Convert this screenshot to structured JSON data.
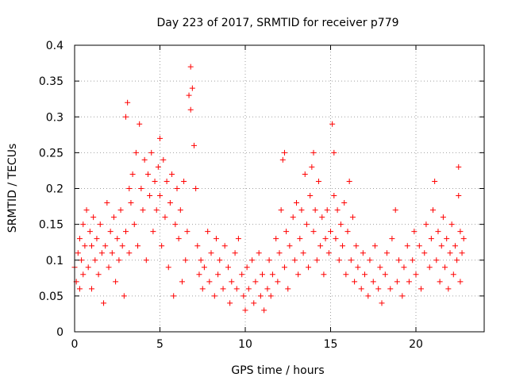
{
  "chart_data": {
    "type": "scatter",
    "title": "Day 223 of 2017, SRMTID for receiver p779",
    "xlabel": "GPS time / hours",
    "ylabel": "SRMTID / TECUs",
    "xlim": [
      0,
      24
    ],
    "ylim": [
      0,
      0.4
    ],
    "grid": true,
    "marker": "+",
    "color": "#ff0000",
    "xticks": [
      0,
      5,
      10,
      15,
      20
    ],
    "xtick_labels": [
      "0",
      "5",
      "10",
      "15",
      "20"
    ],
    "yticks": [
      0,
      0.05,
      0.1,
      0.15,
      0.2,
      0.25,
      0.3,
      0.35,
      0.4
    ],
    "ytick_labels": [
      "0",
      "0.05",
      "0.1",
      "0.15",
      "0.2",
      "0.25",
      "0.3",
      "0.35",
      "0.4"
    ],
    "series": [
      {
        "name": "p779",
        "points": [
          [
            0.0,
            0.09
          ],
          [
            0.1,
            0.07
          ],
          [
            0.2,
            0.11
          ],
          [
            0.3,
            0.13
          ],
          [
            0.3,
            0.06
          ],
          [
            0.4,
            0.1
          ],
          [
            0.5,
            0.15
          ],
          [
            0.5,
            0.08
          ],
          [
            0.6,
            0.12
          ],
          [
            0.7,
            0.17
          ],
          [
            0.8,
            0.09
          ],
          [
            0.9,
            0.14
          ],
          [
            1.0,
            0.12
          ],
          [
            1.0,
            0.06
          ],
          [
            1.1,
            0.16
          ],
          [
            1.2,
            0.1
          ],
          [
            1.3,
            0.13
          ],
          [
            1.4,
            0.08
          ],
          [
            1.5,
            0.15
          ],
          [
            1.6,
            0.11
          ],
          [
            1.7,
            0.04
          ],
          [
            1.8,
            0.12
          ],
          [
            1.9,
            0.18
          ],
          [
            2.0,
            0.09
          ],
          [
            2.1,
            0.14
          ],
          [
            2.2,
            0.11
          ],
          [
            2.3,
            0.16
          ],
          [
            2.4,
            0.07
          ],
          [
            2.5,
            0.13
          ],
          [
            2.6,
            0.1
          ],
          [
            2.7,
            0.17
          ],
          [
            2.8,
            0.12
          ],
          [
            2.9,
            0.05
          ],
          [
            3.0,
            0.3
          ],
          [
            3.0,
            0.14
          ],
          [
            3.1,
            0.32
          ],
          [
            3.2,
            0.2
          ],
          [
            3.2,
            0.11
          ],
          [
            3.3,
            0.18
          ],
          [
            3.4,
            0.22
          ],
          [
            3.5,
            0.15
          ],
          [
            3.6,
            0.25
          ],
          [
            3.7,
            0.12
          ],
          [
            3.8,
            0.29
          ],
          [
            3.9,
            0.2
          ],
          [
            4.0,
            0.17
          ],
          [
            4.1,
            0.24
          ],
          [
            4.2,
            0.1
          ],
          [
            4.3,
            0.22
          ],
          [
            4.4,
            0.19
          ],
          [
            4.5,
            0.25
          ],
          [
            4.6,
            0.14
          ],
          [
            4.7,
            0.21
          ],
          [
            4.8,
            0.17
          ],
          [
            4.9,
            0.23
          ],
          [
            5.0,
            0.27
          ],
          [
            5.0,
            0.19
          ],
          [
            5.1,
            0.12
          ],
          [
            5.2,
            0.24
          ],
          [
            5.3,
            0.16
          ],
          [
            5.4,
            0.21
          ],
          [
            5.5,
            0.09
          ],
          [
            5.6,
            0.18
          ],
          [
            5.7,
            0.22
          ],
          [
            5.8,
            0.05
          ],
          [
            5.9,
            0.15
          ],
          [
            6.0,
            0.2
          ],
          [
            6.1,
            0.13
          ],
          [
            6.2,
            0.17
          ],
          [
            6.3,
            0.07
          ],
          [
            6.4,
            0.21
          ],
          [
            6.5,
            0.1
          ],
          [
            6.6,
            0.14
          ],
          [
            6.7,
            0.33
          ],
          [
            6.8,
            0.37
          ],
          [
            6.8,
            0.31
          ],
          [
            6.9,
            0.34
          ],
          [
            7.0,
            0.26
          ],
          [
            7.1,
            0.2
          ],
          [
            7.2,
            0.12
          ],
          [
            7.3,
            0.08
          ],
          [
            7.4,
            0.1
          ],
          [
            7.5,
            0.06
          ],
          [
            7.6,
            0.09
          ],
          [
            7.8,
            0.14
          ],
          [
            7.9,
            0.07
          ],
          [
            8.0,
            0.11
          ],
          [
            8.2,
            0.05
          ],
          [
            8.3,
            0.13
          ],
          [
            8.4,
            0.08
          ],
          [
            8.5,
            0.1
          ],
          [
            8.7,
            0.06
          ],
          [
            8.8,
            0.12
          ],
          [
            9.0,
            0.09
          ],
          [
            9.1,
            0.04
          ],
          [
            9.2,
            0.07
          ],
          [
            9.4,
            0.11
          ],
          [
            9.5,
            0.06
          ],
          [
            9.6,
            0.13
          ],
          [
            9.8,
            0.08
          ],
          [
            9.9,
            0.05
          ],
          [
            10.0,
            0.03
          ],
          [
            10.1,
            0.09
          ],
          [
            10.2,
            0.06
          ],
          [
            10.4,
            0.1
          ],
          [
            10.5,
            0.04
          ],
          [
            10.6,
            0.07
          ],
          [
            10.8,
            0.11
          ],
          [
            10.9,
            0.05
          ],
          [
            11.0,
            0.08
          ],
          [
            11.1,
            0.03
          ],
          [
            11.3,
            0.06
          ],
          [
            11.4,
            0.1
          ],
          [
            11.5,
            0.05
          ],
          [
            11.6,
            0.08
          ],
          [
            11.8,
            0.13
          ],
          [
            11.9,
            0.07
          ],
          [
            12.0,
            0.11
          ],
          [
            12.1,
            0.17
          ],
          [
            12.2,
            0.24
          ],
          [
            12.3,
            0.25
          ],
          [
            12.3,
            0.09
          ],
          [
            12.4,
            0.14
          ],
          [
            12.5,
            0.06
          ],
          [
            12.6,
            0.12
          ],
          [
            12.8,
            0.16
          ],
          [
            12.9,
            0.1
          ],
          [
            13.0,
            0.18
          ],
          [
            13.1,
            0.08
          ],
          [
            13.2,
            0.13
          ],
          [
            13.3,
            0.17
          ],
          [
            13.4,
            0.11
          ],
          [
            13.5,
            0.22
          ],
          [
            13.6,
            0.15
          ],
          [
            13.7,
            0.09
          ],
          [
            13.8,
            0.19
          ],
          [
            13.9,
            0.23
          ],
          [
            14.0,
            0.25
          ],
          [
            14.0,
            0.14
          ],
          [
            14.1,
            0.17
          ],
          [
            14.2,
            0.1
          ],
          [
            14.3,
            0.21
          ],
          [
            14.4,
            0.12
          ],
          [
            14.5,
            0.16
          ],
          [
            14.6,
            0.08
          ],
          [
            14.7,
            0.13
          ],
          [
            14.8,
            0.17
          ],
          [
            14.9,
            0.11
          ],
          [
            15.0,
            0.14
          ],
          [
            15.1,
            0.29
          ],
          [
            15.2,
            0.25
          ],
          [
            15.2,
            0.19
          ],
          [
            15.3,
            0.13
          ],
          [
            15.4,
            0.17
          ],
          [
            15.5,
            0.1
          ],
          [
            15.6,
            0.15
          ],
          [
            15.7,
            0.12
          ],
          [
            15.8,
            0.18
          ],
          [
            15.9,
            0.08
          ],
          [
            16.0,
            0.14
          ],
          [
            16.1,
            0.21
          ],
          [
            16.2,
            0.1
          ],
          [
            16.3,
            0.16
          ],
          [
            16.4,
            0.07
          ],
          [
            16.5,
            0.12
          ],
          [
            16.6,
            0.09
          ],
          [
            16.8,
            0.06
          ],
          [
            16.9,
            0.11
          ],
          [
            17.0,
            0.08
          ],
          [
            17.2,
            0.05
          ],
          [
            17.3,
            0.1
          ],
          [
            17.5,
            0.07
          ],
          [
            17.6,
            0.12
          ],
          [
            17.8,
            0.06
          ],
          [
            17.9,
            0.09
          ],
          [
            18.0,
            0.04
          ],
          [
            18.2,
            0.08
          ],
          [
            18.3,
            0.11
          ],
          [
            18.5,
            0.06
          ],
          [
            18.6,
            0.13
          ],
          [
            18.8,
            0.17
          ],
          [
            18.9,
            0.07
          ],
          [
            19.0,
            0.1
          ],
          [
            19.2,
            0.05
          ],
          [
            19.3,
            0.09
          ],
          [
            19.5,
            0.12
          ],
          [
            19.6,
            0.07
          ],
          [
            19.8,
            0.1
          ],
          [
            19.9,
            0.14
          ],
          [
            20.0,
            0.08
          ],
          [
            20.2,
            0.12
          ],
          [
            20.3,
            0.06
          ],
          [
            20.5,
            0.11
          ],
          [
            20.6,
            0.15
          ],
          [
            20.8,
            0.09
          ],
          [
            20.9,
            0.13
          ],
          [
            21.0,
            0.17
          ],
          [
            21.1,
            0.21
          ],
          [
            21.2,
            0.1
          ],
          [
            21.3,
            0.14
          ],
          [
            21.4,
            0.07
          ],
          [
            21.5,
            0.12
          ],
          [
            21.6,
            0.16
          ],
          [
            21.7,
            0.09
          ],
          [
            21.8,
            0.13
          ],
          [
            21.9,
            0.06
          ],
          [
            22.0,
            0.11
          ],
          [
            22.1,
            0.15
          ],
          [
            22.2,
            0.08
          ],
          [
            22.3,
            0.12
          ],
          [
            22.4,
            0.1
          ],
          [
            22.5,
            0.19
          ],
          [
            22.5,
            0.23
          ],
          [
            22.6,
            0.14
          ],
          [
            22.6,
            0.07
          ],
          [
            22.7,
            0.11
          ],
          [
            22.8,
            0.13
          ]
        ]
      }
    ]
  }
}
